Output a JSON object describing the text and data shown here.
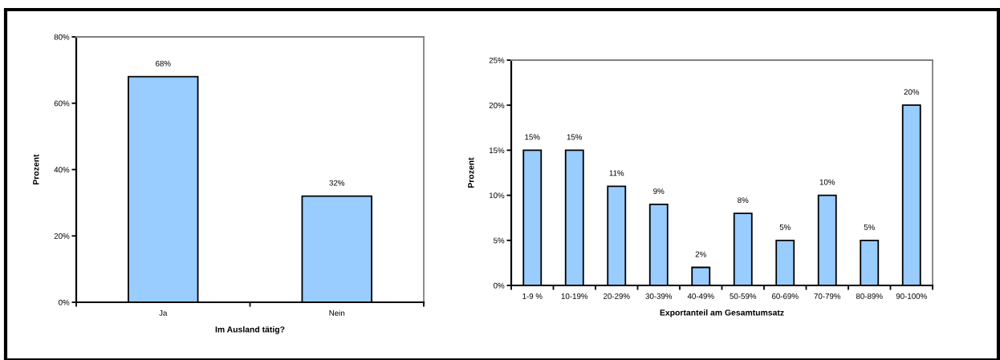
{
  "chart_data": [
    {
      "type": "bar",
      "xlabel": "Im Ausland tätig?",
      "ylabel": "Prozent",
      "categories": [
        "Ja",
        "Nein"
      ],
      "values": [
        68,
        32
      ],
      "color": "#99ccff",
      "value_labels": [
        "68%",
        "32%"
      ],
      "ylim": [
        0,
        80
      ],
      "yticks": [
        {
          "value": 0,
          "label": "0%"
        },
        {
          "value": 20,
          "label": "20%"
        },
        {
          "value": 40,
          "label": "40%"
        },
        {
          "value": 60,
          "label": "60%"
        },
        {
          "value": 80,
          "label": "80%"
        }
      ],
      "grid": false,
      "legend": false
    },
    {
      "type": "bar",
      "xlabel": "Exportanteil am Gesamtumsatz",
      "ylabel": "Prozent",
      "categories": [
        "1-9 %",
        "10-19%",
        "20-29%",
        "30-39%",
        "40-49%",
        "50-59%",
        "60-69%",
        "70-79%",
        "80-89%",
        "90-100%"
      ],
      "values": [
        15,
        15,
        11,
        9,
        2,
        8,
        5,
        10,
        5,
        20
      ],
      "color": "#99ccff",
      "value_labels": [
        "15%",
        "15%",
        "11%",
        "9%",
        "2%",
        "8%",
        "5%",
        "10%",
        "5%",
        "20%"
      ],
      "ylim": [
        0,
        25
      ],
      "yticks": [
        {
          "value": 0,
          "label": "0%"
        },
        {
          "value": 5,
          "label": "5%"
        },
        {
          "value": 10,
          "label": "10%"
        },
        {
          "value": 15,
          "label": "15%"
        },
        {
          "value": 20,
          "label": "20%"
        },
        {
          "value": 25,
          "label": "25%"
        }
      ],
      "grid": false,
      "legend": false
    }
  ]
}
